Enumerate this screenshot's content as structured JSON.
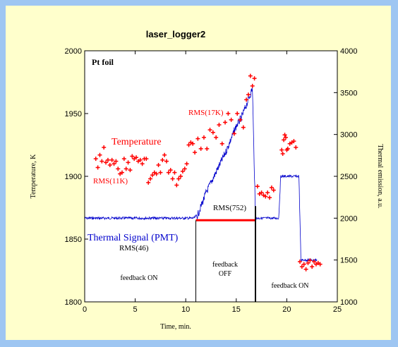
{
  "chart_data": {
    "type": "line",
    "title": "laser_logger2",
    "xlabel": "Time, min.",
    "ylabel": "Temperature, K",
    "y2label": "Thermal emission, a.u.",
    "xlim": [
      0,
      25
    ],
    "ylim": [
      1800,
      2000
    ],
    "y2lim": [
      1000,
      4000
    ],
    "xticks": [
      "0",
      "5",
      "10",
      "15",
      "20",
      "25"
    ],
    "yticks": [
      "1800",
      "1850",
      "1900",
      "1950",
      "2000"
    ],
    "y2ticks": [
      "1000",
      "1500",
      "2000",
      "2500",
      "3000",
      "3500",
      "4000"
    ],
    "grid": false,
    "colors": {
      "temperature": "#ff0000",
      "signal": "#0000cc",
      "feedback": "#ff0000"
    },
    "series": [
      {
        "name": "Temperature",
        "axis": "left",
        "marker": "plus",
        "x": [
          1.1,
          1.3,
          1.5,
          1.7,
          1.9,
          2.1,
          2.3,
          2.5,
          2.7,
          2.9,
          3.1,
          3.3,
          3.5,
          3.7,
          3.9,
          4.1,
          4.3,
          4.5,
          4.7,
          4.9,
          5.1,
          5.3,
          5.5,
          5.7,
          5.9,
          6.1,
          6.3,
          6.5,
          6.7,
          6.9,
          7.1,
          7.3,
          7.5,
          7.7,
          7.9,
          8.1,
          8.3,
          8.5,
          8.7,
          8.9,
          9.1,
          9.3,
          9.5,
          9.7,
          9.9,
          10.1,
          10.3,
          10.5,
          10.7,
          10.9,
          11.2,
          11.5,
          11.8,
          12.1,
          12.4,
          12.7,
          13.0,
          13.3,
          13.6,
          13.9,
          14.2,
          14.5,
          14.8,
          15.1,
          15.4,
          15.7,
          16.0,
          16.2,
          16.4,
          16.6,
          16.8,
          17.1,
          17.3,
          17.5,
          17.7,
          17.9,
          18.1,
          18.3,
          18.5,
          18.7,
          19.5,
          19.6,
          19.7,
          19.8,
          19.9,
          20.0,
          20.1,
          20.3,
          20.5,
          20.7,
          20.9,
          21.3,
          21.5,
          21.7,
          21.9,
          22.1,
          22.3,
          22.5,
          22.7,
          22.9,
          23.1,
          23.3
        ],
        "y": [
          1914,
          1907,
          1917,
          1912,
          1923,
          1911,
          1913,
          1909,
          1913,
          1910,
          1912,
          1906,
          1902,
          1903,
          1914,
          1906,
          1911,
          1905,
          1916,
          1914,
          1915,
          1912,
          1913,
          1910,
          1914,
          1914,
          1895,
          1898,
          1901,
          1903,
          1902,
          1909,
          1903,
          1913,
          1917,
          1912,
          1903,
          1905,
          1898,
          1903,
          1893,
          1898,
          1900,
          1904,
          1906,
          1910,
          1925,
          1927,
          1926,
          1919,
          1930,
          1922,
          1931,
          1922,
          1937,
          1935,
          1931,
          1941,
          1926,
          1943,
          1950,
          1945,
          1934,
          1950,
          1945,
          1939,
          1961,
          1965,
          1980,
          1972,
          1978,
          1892,
          1886,
          1887,
          1885,
          1884,
          1887,
          1883,
          1891,
          1889,
          1921,
          1918,
          1929,
          1933,
          1931,
          1921,
          1922,
          1926,
          1927,
          1928,
          1923,
          1832,
          1828,
          1830,
          1826,
          1831,
          1833,
          1828,
          1832,
          1830,
          1831,
          1830
        ]
      },
      {
        "name": "Thermal Signal (PMT)",
        "axis": "right",
        "x": [
          0,
          10.8,
          11.2,
          12,
          13,
          14,
          15,
          15.5,
          16,
          16.3,
          16.6,
          16.9,
          17.0,
          19.2,
          19.4,
          21.2,
          21.4,
          23.0
        ],
        "y": [
          2000,
          2000,
          2040,
          2300,
          2550,
          2800,
          3100,
          3200,
          3350,
          3450,
          3550,
          2000,
          2000,
          2000,
          2500,
          2500,
          1500,
          1500
        ]
      }
    ],
    "feedback_off_line": {
      "x": [
        11.0,
        16.9
      ],
      "y": 1865
    },
    "dividers": [
      11.0,
      16.9
    ],
    "annotations": {
      "panel_label": "Pt foil",
      "temperature_label": "Temperature",
      "signal_label": "Thermal Signal (PMT)",
      "rms_11k": "RMS(11K)",
      "rms_17k": "RMS(17K)",
      "rms_46": "RMS(46)",
      "rms_752": "RMS(752)",
      "feedback_on_1": "feedback ON",
      "feedback_off_1": "feedback",
      "feedback_off_2": "OFF",
      "feedback_on_2": "feedback ON"
    }
  }
}
